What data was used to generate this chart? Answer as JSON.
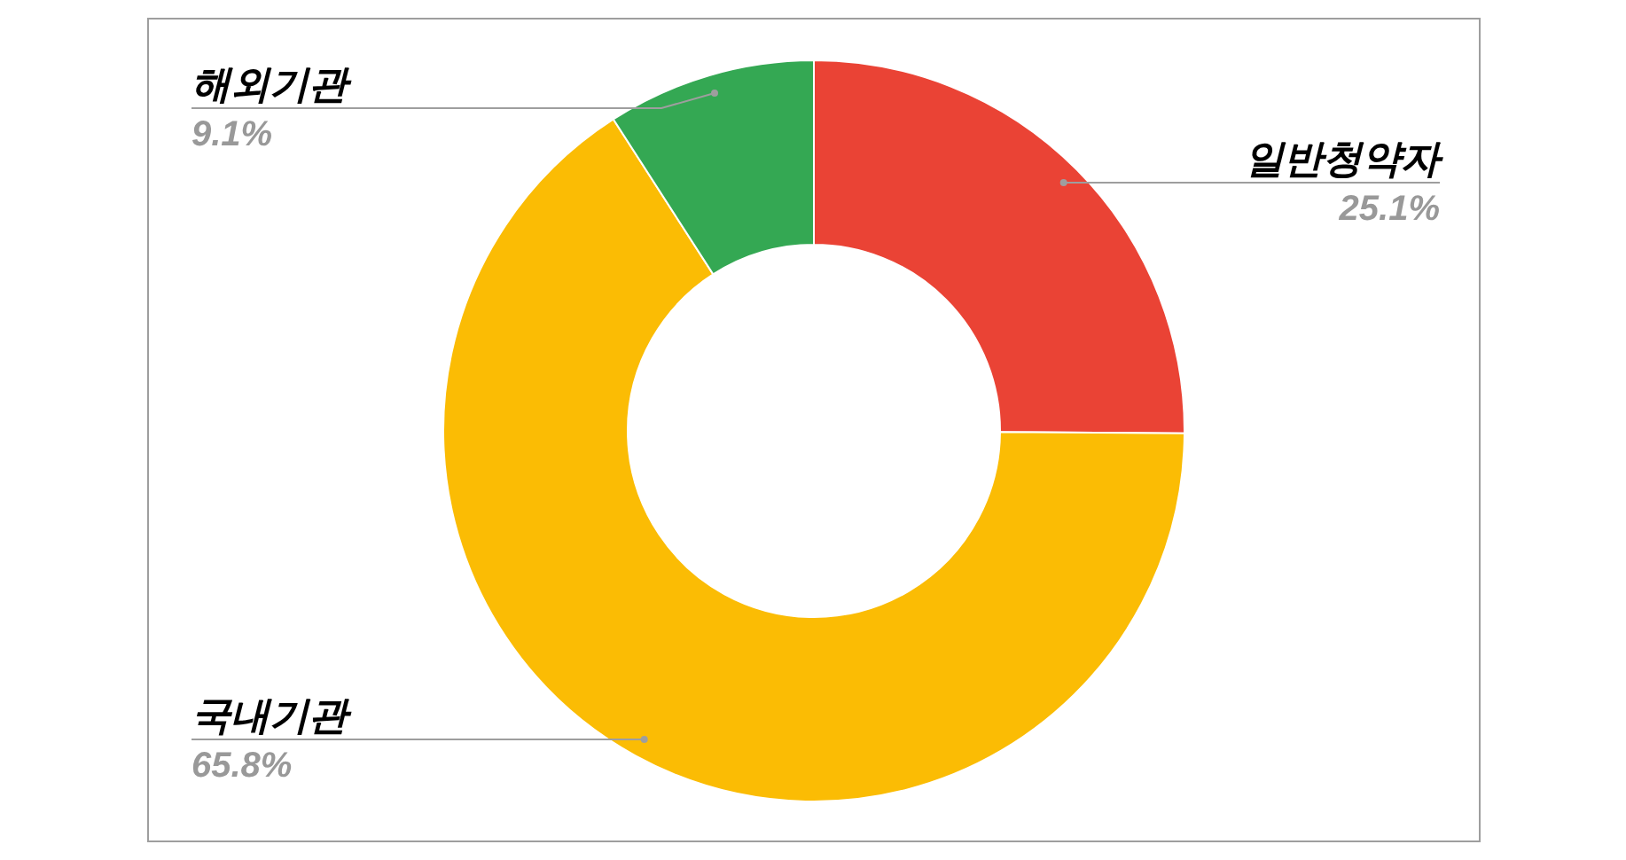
{
  "chart_data": {
    "type": "donut",
    "categories": [
      "일반청약자",
      "국내기관",
      "해외기관"
    ],
    "values": [
      25.1,
      65.8,
      9.1
    ],
    "colors": [
      "#ea4335",
      "#fbbc04",
      "#34a853"
    ],
    "value_labels": [
      "25.1%",
      "65.8%",
      "9.1%"
    ]
  }
}
